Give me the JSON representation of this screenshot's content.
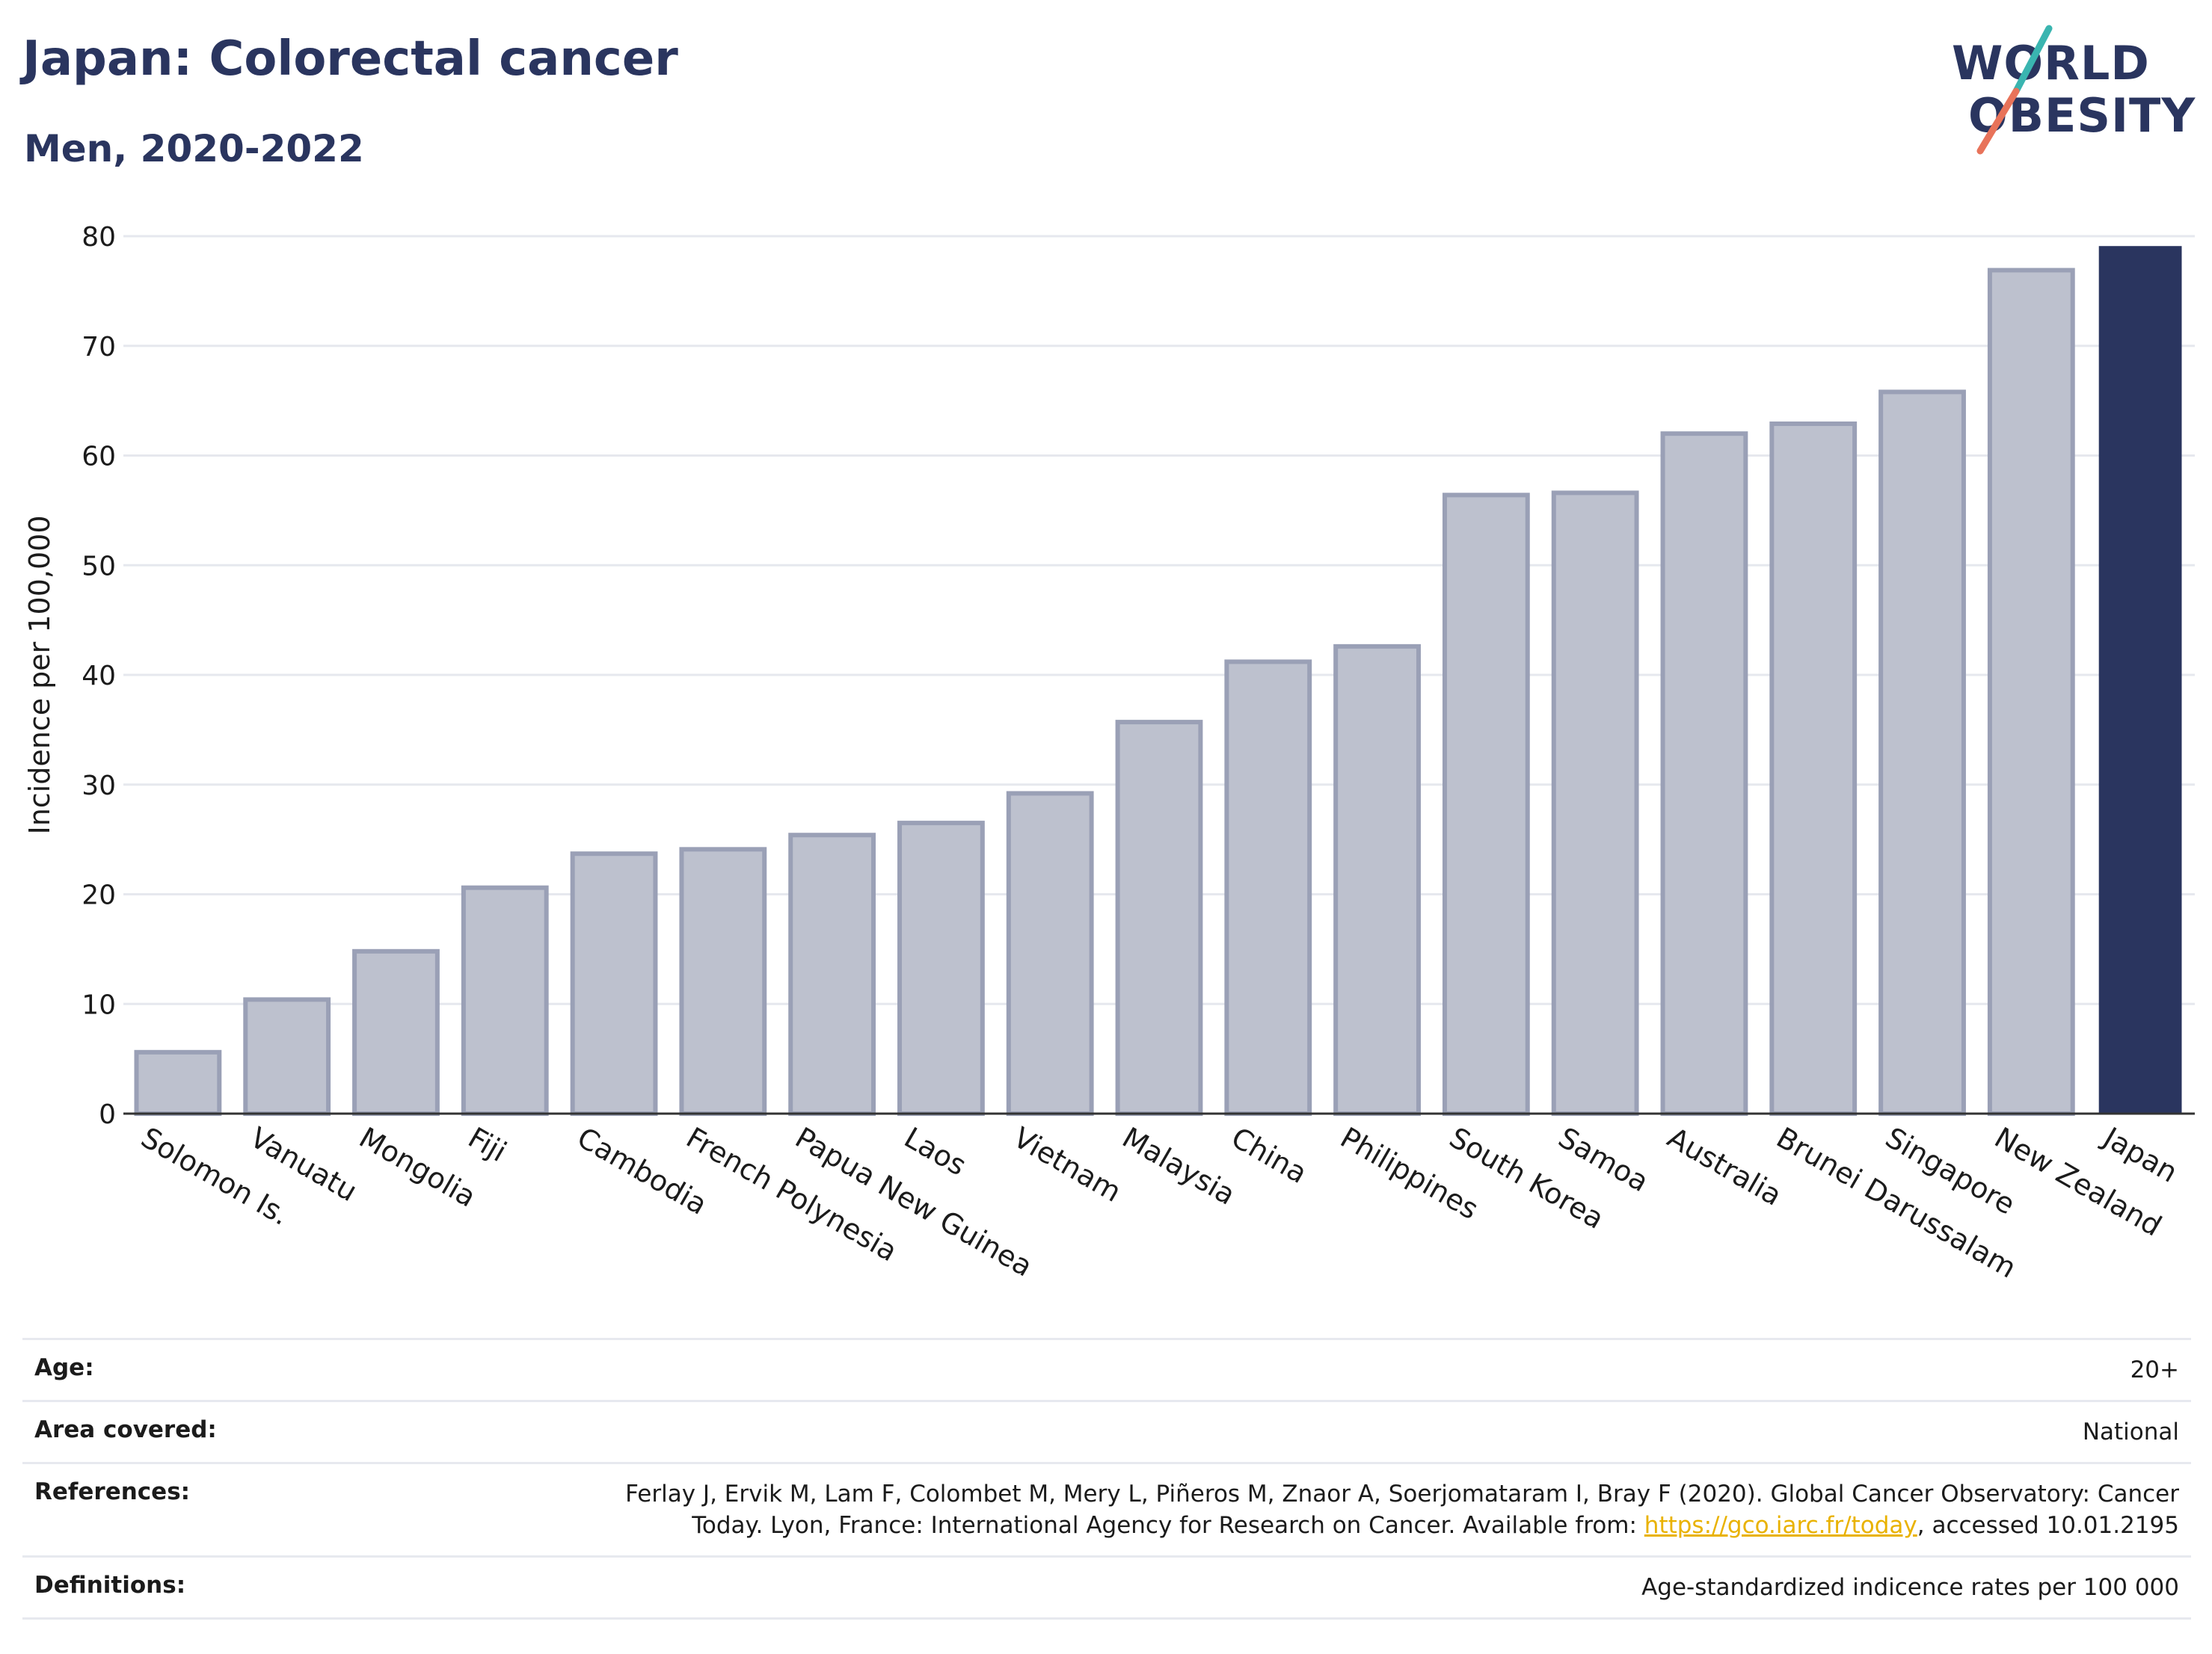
{
  "header": {
    "title": "Japan: Colorectal cancer",
    "subtitle": "Men, 2020-2022"
  },
  "logo": {
    "line1": "WORLD",
    "line2": "OBESITY",
    "colors": {
      "text": "#2a355f",
      "slash_top": "#3ab5b0",
      "slash_bottom": "#e8735a"
    }
  },
  "chart_data": {
    "type": "bar",
    "ylabel": "Incidence per 100,000",
    "xlabel": "",
    "ylim": [
      0,
      80
    ],
    "yticks": [
      0,
      10,
      20,
      30,
      40,
      50,
      60,
      70,
      80
    ],
    "grid": true,
    "highlight": "Japan",
    "colors": {
      "bar": "#bdc1ce",
      "bar_edge": "#9aa0b6",
      "highlight": "#2a355f"
    },
    "categories": [
      "Solomon Is.",
      "Vanuatu",
      "Mongolia",
      "Fiji",
      "Cambodia",
      "French Polynesia",
      "Papua New Guinea",
      "Laos",
      "Vietnam",
      "Malaysia",
      "China",
      "Philippines",
      "South Korea",
      "Samoa",
      "Australia",
      "Brunei Darussalam",
      "Singapore",
      "New Zealand",
      "Japan"
    ],
    "values": [
      5.6,
      10.4,
      14.8,
      20.6,
      23.7,
      24.1,
      25.4,
      26.5,
      29.2,
      35.7,
      41.2,
      42.6,
      56.4,
      56.6,
      62.0,
      62.9,
      65.8,
      76.9,
      79.1
    ]
  },
  "info": {
    "age": {
      "label": "Age:",
      "value": "20+"
    },
    "area": {
      "label": "Area covered:",
      "value": "National"
    },
    "references": {
      "label": "References:",
      "line1": "Ferlay J, Ervik M, Lam F, Colombet M, Mery L, Piñeros M, Znaor A, Soerjomataram I, Bray F (2020). Global Cancer Observatory: Cancer",
      "line2_pre": "Today. Lyon, France: International Agency for Research on Cancer. Available from: ",
      "link": "https://gco.iarc.fr/today",
      "line2_post": ", accessed 10.01.2195"
    },
    "definitions": {
      "label": "Definitions:",
      "value": "Age-standardized indicence rates per 100 000"
    }
  }
}
